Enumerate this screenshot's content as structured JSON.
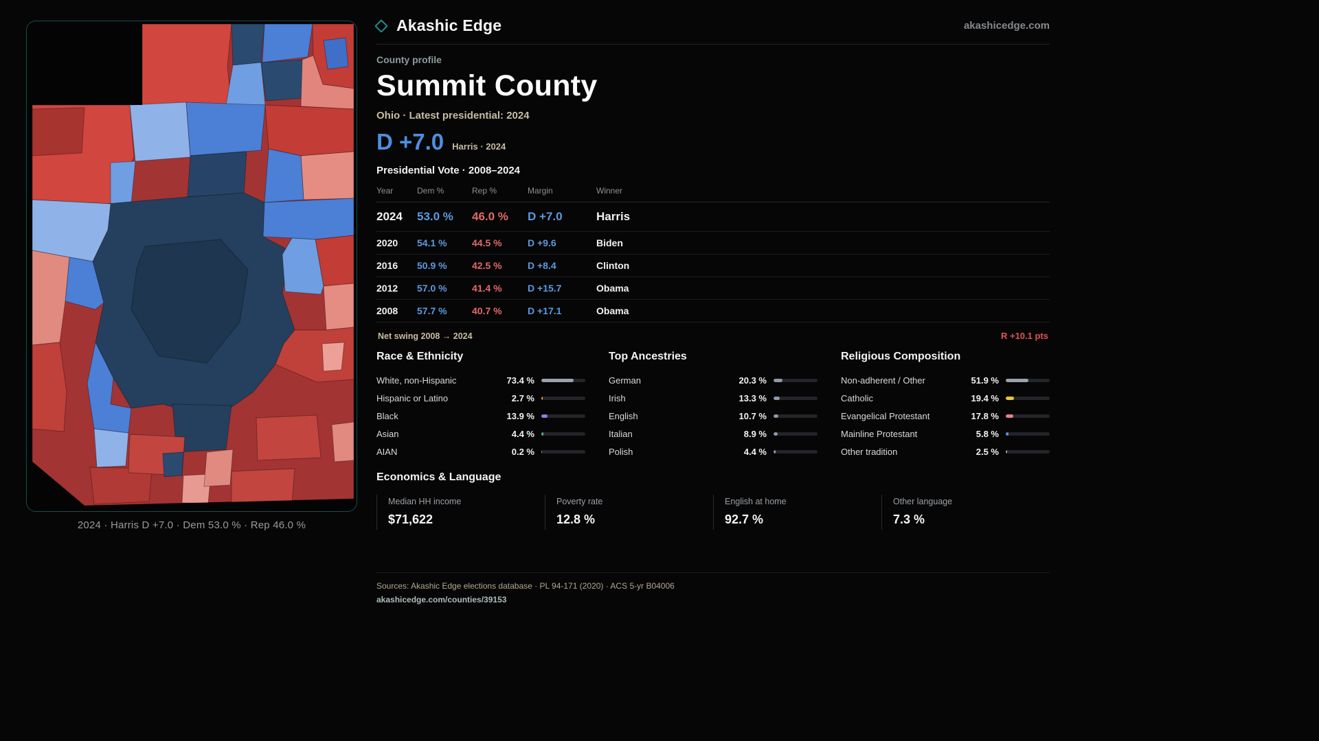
{
  "meta": {
    "brand": "Akashic Edge",
    "domain": "akashicedge.com",
    "eyebrow": "County profile",
    "title": "Summit County",
    "subtitle": "Ohio · Latest presidential: 2024",
    "headline_margin": "D +7.0",
    "headline_caption": "Harris · 2024"
  },
  "map": {
    "caption": "2024 · Harris D +7.0 · Dem 53.0 % · Rep 46.0 %"
  },
  "vote_table": {
    "title": "Presidential Vote · 2008–2024",
    "columns": [
      "Year",
      "Dem %",
      "Rep %",
      "Margin",
      "Winner"
    ],
    "rows": [
      {
        "year": "2024",
        "dem": "53.0 %",
        "rep": "46.0 %",
        "margin": "D +7.0",
        "winner": "Harris"
      },
      {
        "year": "2020",
        "dem": "54.1 %",
        "rep": "44.5 %",
        "margin": "D +9.6",
        "winner": "Biden"
      },
      {
        "year": "2016",
        "dem": "50.9 %",
        "rep": "42.5 %",
        "margin": "D +8.4",
        "winner": "Clinton"
      },
      {
        "year": "2012",
        "dem": "57.0 %",
        "rep": "41.4 %",
        "margin": "D +15.7",
        "winner": "Obama"
      },
      {
        "year": "2008",
        "dem": "57.7 %",
        "rep": "40.7 %",
        "margin": "D +17.1",
        "winner": "Obama"
      }
    ],
    "net_swing_label": "Net swing 2008 → 2024",
    "net_swing_value": "R +10.1 pts"
  },
  "stats": [
    {
      "title": "Race & Ethnicity",
      "rows": [
        {
          "label": "White, non-Hispanic",
          "value": "73.4 %",
          "pct": 73.4,
          "color": "#9aa3ad"
        },
        {
          "label": "Hispanic or Latino",
          "value": "2.7 %",
          "pct": 2.7,
          "color": "#e8a33c"
        },
        {
          "label": "Black",
          "value": "13.9 %",
          "pct": 13.9,
          "color": "#8f7fe8"
        },
        {
          "label": "Asian",
          "value": "4.4 %",
          "pct": 4.4,
          "color": "#3fbf9f"
        },
        {
          "label": "AIAN",
          "value": "0.2 %",
          "pct": 0.2,
          "color": "#9aa3ad"
        }
      ]
    },
    {
      "title": "Top Ancestries",
      "rows": [
        {
          "label": "German",
          "value": "20.3 %",
          "pct": 20.3,
          "color": "#8d99a8"
        },
        {
          "label": "Irish",
          "value": "13.3 %",
          "pct": 13.3,
          "color": "#8d99a8"
        },
        {
          "label": "English",
          "value": "10.7 %",
          "pct": 10.7,
          "color": "#8d99a8"
        },
        {
          "label": "Italian",
          "value": "8.9 %",
          "pct": 8.9,
          "color": "#8d99a8"
        },
        {
          "label": "Polish",
          "value": "4.4 %",
          "pct": 4.4,
          "color": "#8d99a8"
        }
      ]
    },
    {
      "title": "Religious Composition",
      "rows": [
        {
          "label": "Non-adherent / Other",
          "value": "51.9 %",
          "pct": 51.9,
          "color": "#9aa3ad"
        },
        {
          "label": "Catholic",
          "value": "19.4 %",
          "pct": 19.4,
          "color": "#e8c63c"
        },
        {
          "label": "Evangelical Protestant",
          "value": "17.8 %",
          "pct": 17.8,
          "color": "#e87f8f"
        },
        {
          "label": "Mainline Protestant",
          "value": "5.8 %",
          "pct": 5.8,
          "color": "#5b8dd9"
        },
        {
          "label": "Other tradition",
          "value": "2.5 %",
          "pct": 2.5,
          "color": "#9aa3ad"
        }
      ]
    }
  ],
  "economics": {
    "title": "Economics & Language",
    "cards": [
      {
        "label": "Median HH income",
        "value": "$71,622"
      },
      {
        "label": "Poverty rate",
        "value": "12.8 %"
      },
      {
        "label": "English at home",
        "value": "92.7 %"
      },
      {
        "label": "Other language",
        "value": "7.3 %"
      }
    ]
  },
  "footer": {
    "sources": "Sources: Akashic Edge elections database · PL 94-171 (2020) · ACS 5-yr B04006",
    "permalink": "akashicedge.com/counties/39153"
  }
}
